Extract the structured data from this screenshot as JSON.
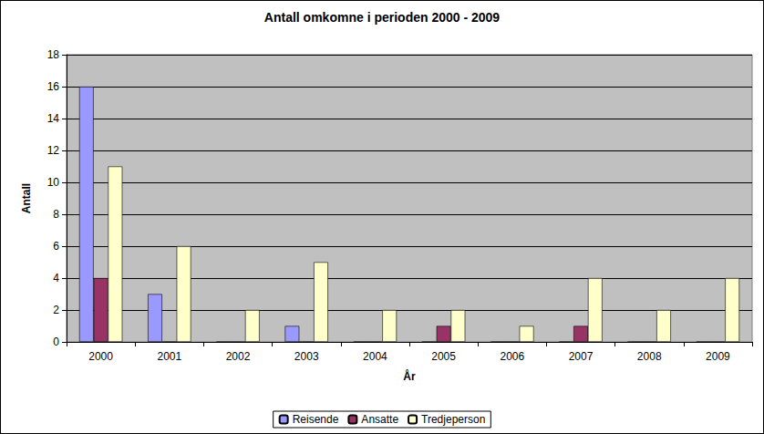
{
  "chart_data": {
    "type": "bar",
    "title": "Antall omkomne i perioden 2000 - 2009",
    "x_label": "År",
    "y_label": "Antall",
    "categories": [
      "2000",
      "2001",
      "2002",
      "2003",
      "2004",
      "2005",
      "2006",
      "2007",
      "2008",
      "2009"
    ],
    "series": [
      {
        "name": "Reisende",
        "color": "#9999FF",
        "values": [
          16,
          3,
          0,
          1,
          0,
          0,
          0,
          0,
          0,
          0
        ]
      },
      {
        "name": "Ansatte",
        "color": "#993366",
        "values": [
          4,
          0,
          0,
          0,
          0,
          1,
          0,
          1,
          0,
          0
        ]
      },
      {
        "name": "Tredjeperson",
        "color": "#FFFFCC",
        "values": [
          11,
          6,
          2,
          5,
          2,
          2,
          1,
          4,
          2,
          4
        ]
      }
    ],
    "ylim": [
      0,
      18
    ],
    "yticks": [
      0,
      2,
      4,
      6,
      8,
      10,
      12,
      14,
      16,
      18
    ],
    "grid": true,
    "legend": "bottom"
  }
}
